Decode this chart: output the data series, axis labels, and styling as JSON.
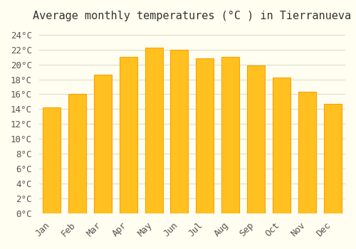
{
  "title": "Average monthly temperatures (°C ) in Tierranueva",
  "months": [
    "Jan",
    "Feb",
    "Mar",
    "Apr",
    "May",
    "Jun",
    "Jul",
    "Aug",
    "Sep",
    "Oct",
    "Nov",
    "Dec"
  ],
  "values": [
    14.2,
    16.0,
    18.6,
    21.0,
    22.2,
    22.0,
    20.8,
    21.0,
    19.9,
    18.2,
    16.3,
    14.7
  ],
  "bar_color_face": "#FFC020",
  "bar_color_edge": "#FFA000",
  "background_color": "#FFFEF0",
  "grid_color": "#DDDDCC",
  "title_fontsize": 11,
  "tick_fontsize": 9,
  "ylim": [
    0,
    25
  ],
  "ytick_step": 2
}
